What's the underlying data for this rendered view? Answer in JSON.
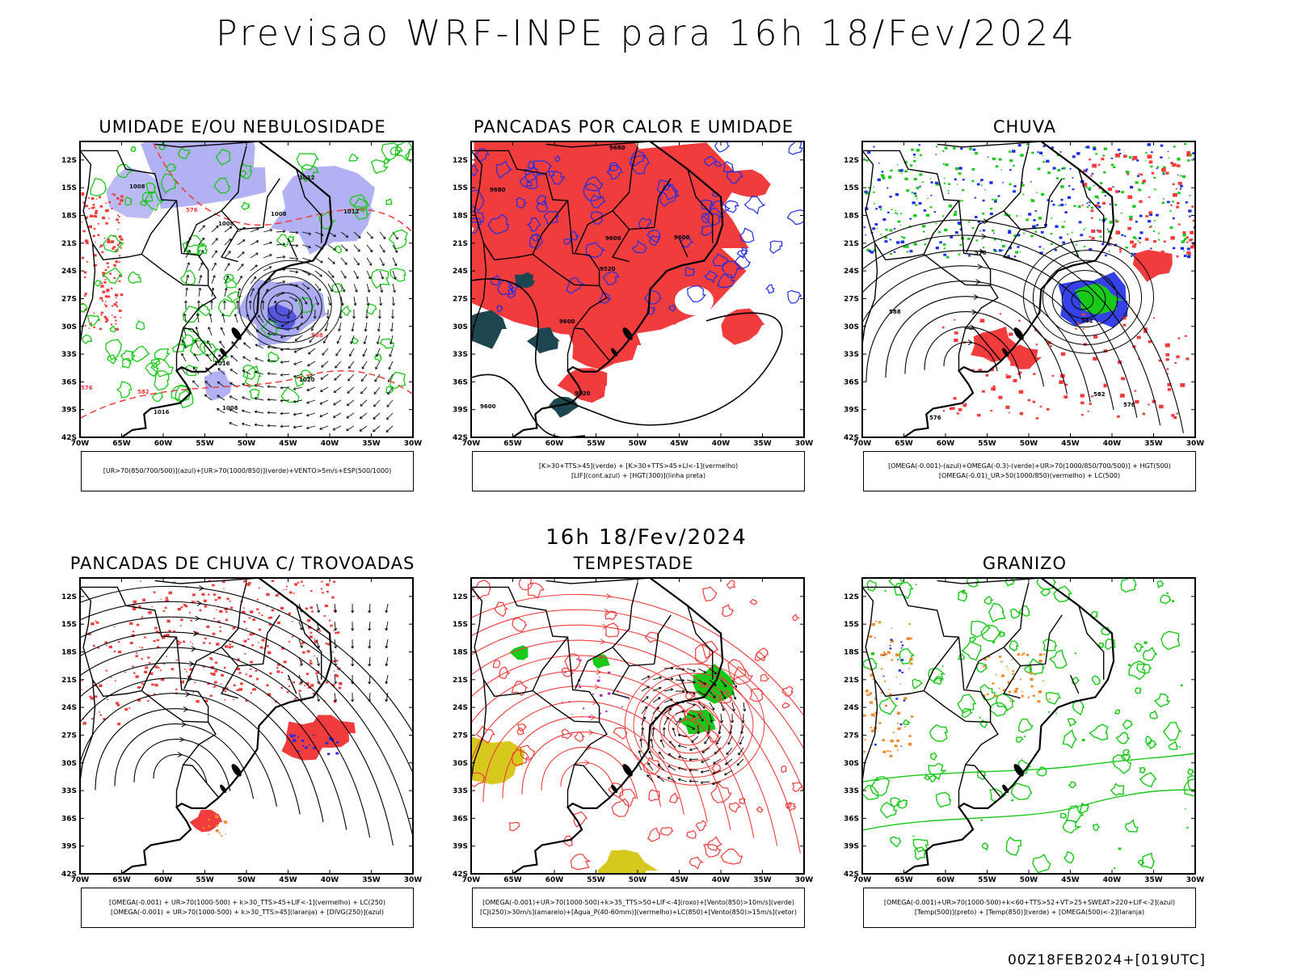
{
  "header": {
    "main_title": "Previsao WRF-INPE  para 16h 18/Fev/2024",
    "mid_title": "16h 18/Fev/2024",
    "footer_id": "00Z18FEB2024+[019UTC]"
  },
  "axes": {
    "lat_labels": [
      "12S",
      "15S",
      "18S",
      "21S",
      "24S",
      "27S",
      "30S",
      "33S",
      "36S",
      "39S",
      "42S"
    ],
    "lon_labels": [
      "70W",
      "65W",
      "60W",
      "55W",
      "50W",
      "45W",
      "40W",
      "35W",
      "30W"
    ]
  },
  "colors": {
    "green": "#19c819",
    "red": "#f03c3c",
    "blue": "#1e2ee6",
    "lavender": "#9d9df0",
    "orange": "#f08c28",
    "yellow": "#d7c81e",
    "darkteal": "#1e4650",
    "black": "#000000",
    "purple": "#a028c8"
  },
  "panels": [
    {
      "title": "UMIDADE E/OU NEBULOSIDADE",
      "legend": [
        "[UR>70(850/700/500)](azul)+[UR>70(1000/850)](verde)+VENTO>5m/s+ESP(500/1000)"
      ],
      "labels": [
        "1008",
        "1012",
        "1016",
        "1020",
        "576",
        "582",
        "588"
      ]
    },
    {
      "title": "PANCADAS POR CALOR E UMIDADE",
      "legend": [
        "[K>30+TTS>45](verde) + [K>30+TTS>45+LI<-1](vermelho)",
        "[LIF](cont.azul) + [HGT(300)](linha preta)"
      ],
      "labels": [
        "9680",
        "9600",
        "9520",
        "9600",
        "9520",
        "9600"
      ]
    },
    {
      "title": "CHUVA",
      "legend": [
        "[OMEGA(-0.001)-(azul)+OMEGA(-0.3)-(verde)+UR>70(1000/850/700/500)] + HGT(500)",
        "[OMEGA(-0.01)_UR>50(1000/850)(vermelho) + LC(500)"
      ],
      "labels": [
        "576",
        "582",
        "588"
      ]
    },
    {
      "title": "PANCADAS DE CHUVA C/ TROVOADAS",
      "legend": [
        "[OMEGA(-0.001) + UR>70(1000-500) + k>30_TTS>45+LIF<-1](vermelho) + LC(250)",
        "[OMEGA(-0.001) + UR>70(1000-500) + k>30_TTS>45](laranja) + [DIVG(250)](azul)"
      ],
      "labels": []
    },
    {
      "title": "TEMPESTADE",
      "legend": [
        "[OMEGA(-0.001)+UR>70(1000-500)+k>35_TTS>50+LIF<-4](roxo)+[Vento(850)>10m/s](verde)",
        "[CJ(250)>30m/s](amarelo)+[Agua_P(40-60mm)](vermelho)+LC(850)+[Vento(850)>15m/s](vetor)"
      ],
      "labels": []
    },
    {
      "title": "GRANIZO",
      "legend": [
        "[OMEGA(-0.001)+UR>70(1000-500)+k<60+TTS>52+VT>25+SWEAT>220+LIF<-2](azul)",
        "[Temp(500)](preto) + [Temp(850)](verde) + [OMEGA(500)<-2](laranja)"
      ],
      "labels": []
    }
  ]
}
